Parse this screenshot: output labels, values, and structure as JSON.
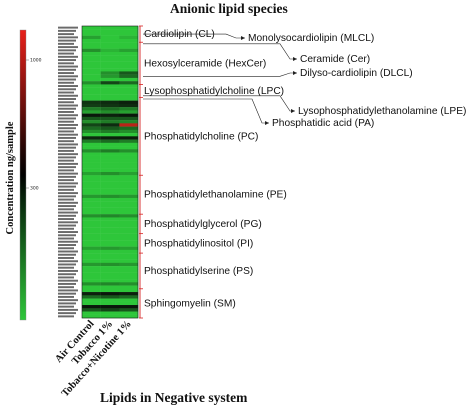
{
  "chart_data": {
    "type": "heatmap",
    "title": "Anionic lipid species",
    "xlabel": "Lipids in Negative system",
    "ylabel": "Concentration ng/sample",
    "columns": [
      "Air Control",
      "Tobacco 1%",
      "Tobacco+Nicotine 1%"
    ],
    "color_scale": {
      "ticks": [
        "1000",
        "300"
      ],
      "low_color": "#2ec63a",
      "mid_color": "#000000",
      "high_color": "#e8201a"
    },
    "row_count": 90,
    "base_value": 0,
    "rows": [
      {
        "i": 3,
        "values": [
          0.2,
          0.0,
          0.1
        ]
      },
      {
        "i": 7,
        "values": [
          0.3,
          0.1,
          0.2
        ]
      },
      {
        "i": 14,
        "values": [
          0.0,
          0.3,
          0.6
        ]
      },
      {
        "i": 15,
        "values": [
          0.0,
          0.25,
          0.5
        ]
      },
      {
        "i": 17,
        "values": [
          0.3,
          0.7,
          0.5
        ]
      },
      {
        "i": 23,
        "values": [
          0.8,
          0.85,
          0.9
        ]
      },
      {
        "i": 24,
        "values": [
          0.75,
          0.8,
          0.85
        ]
      },
      {
        "i": 25,
        "values": [
          0.4,
          0.5,
          0.4
        ]
      },
      {
        "i": 26,
        "values": [
          0.2,
          0.3,
          0.2
        ]
      },
      {
        "i": 27,
        "values": [
          0.95,
          0.9,
          0.95
        ]
      },
      {
        "i": 28,
        "values": [
          0.6,
          0.6,
          0.6
        ]
      },
      {
        "i": 29,
        "values": [
          0.3,
          0.4,
          0.35
        ]
      },
      {
        "i": 30,
        "values": [
          0.7,
          0.85,
          1.4
        ]
      },
      {
        "i": 31,
        "values": [
          0.5,
          0.6,
          0.5
        ]
      },
      {
        "i": 32,
        "values": [
          0.3,
          0.4,
          0.3
        ]
      },
      {
        "i": 34,
        "values": [
          0.85,
          0.9,
          0.9
        ]
      },
      {
        "i": 35,
        "values": [
          0.4,
          0.5,
          0.4
        ]
      },
      {
        "i": 38,
        "values": [
          0.3,
          0.4,
          0.3
        ]
      },
      {
        "i": 45,
        "values": [
          0.2,
          0.3,
          0.2
        ]
      },
      {
        "i": 52,
        "values": [
          0.25,
          0.3,
          0.25
        ]
      },
      {
        "i": 58,
        "values": [
          0.3,
          0.35,
          0.3
        ]
      },
      {
        "i": 68,
        "values": [
          0.2,
          0.25,
          0.2
        ]
      },
      {
        "i": 73,
        "values": [
          0.25,
          0.3,
          0.25
        ]
      },
      {
        "i": 79,
        "values": [
          0.3,
          0.35,
          0.3
        ]
      },
      {
        "i": 82,
        "values": [
          0.9,
          0.95,
          0.9
        ]
      },
      {
        "i": 83,
        "values": [
          0.5,
          0.6,
          0.5
        ]
      },
      {
        "i": 86,
        "values": [
          0.95,
          0.95,
          0.95
        ]
      },
      {
        "i": 87,
        "values": [
          0.6,
          0.7,
          0.6
        ]
      }
    ],
    "lipid_classes": [
      {
        "name": "Cardiolipin (CL)",
        "start": 0,
        "end": 4
      },
      {
        "name": "Hexosylceramide (HexCer)",
        "start": 5,
        "end": 17
      },
      {
        "name": "Lysophosphatidylcholine (LPC)",
        "start": 18,
        "end": 21
      },
      {
        "name": "Phosphatidylcholine (PC)",
        "start": 22,
        "end": 45
      },
      {
        "name": "Phosphatidylethanolamine (PE)",
        "start": 46,
        "end": 57
      },
      {
        "name": "Phosphatidylglycerol (PG)",
        "start": 58,
        "end": 63
      },
      {
        "name": "Phosphatidylinositol (PI)",
        "start": 64,
        "end": 69
      },
      {
        "name": "Phosphatidylserine (PS)",
        "start": 70,
        "end": 80
      },
      {
        "name": "Sphingomyelin (SM)",
        "start": 81,
        "end": 89
      }
    ],
    "callouts": [
      {
        "name": "Monolysocardiolipin (MLCL)",
        "row": 2
      },
      {
        "name": "Ceramide (Cer)",
        "row": 5
      },
      {
        "name": "Dilyso-cardiolipin (DLCL)",
        "row": 15
      },
      {
        "name": "Lysophosphatidylethanolamine (LPE)",
        "row": 21
      },
      {
        "name": "Phosphatidic acid (PA)",
        "row": 22
      }
    ]
  }
}
